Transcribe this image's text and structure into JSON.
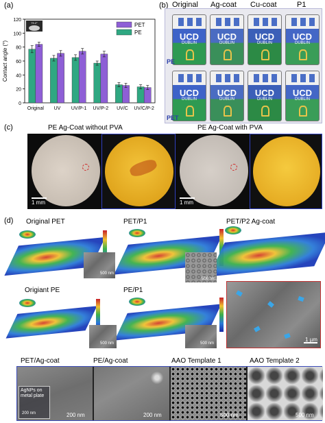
{
  "panel_labels": {
    "a": "(a)",
    "b": "(b)",
    "c": "(c)",
    "d": "(d)"
  },
  "chart_data": {
    "type": "bar",
    "categories": [
      "Original",
      "UV",
      "UV/P-1",
      "UV/P-2",
      "UV/C",
      "UV/C/P-2"
    ],
    "series": [
      {
        "name": "PE",
        "values": [
          77,
          64,
          65,
          57,
          26,
          23
        ],
        "errors": [
          5,
          4,
          4,
          3,
          3,
          3
        ],
        "color": "#2fa882"
      },
      {
        "name": "PET",
        "values": [
          84,
          71,
          74,
          70,
          25,
          22
        ],
        "errors": [
          3,
          4,
          4,
          4,
          3,
          3
        ],
        "color": "#8e5fd6"
      }
    ],
    "ylabel": "Contact angle (°)",
    "ylim": [
      0,
      120
    ],
    "yticks": [
      0,
      20,
      40,
      60,
      80,
      100,
      120
    ],
    "legend_position": "top-right",
    "inset_text": "79.2°"
  },
  "panel_b": {
    "columns": [
      "Original",
      "Ag-coat",
      "Cu-coat",
      "P1"
    ],
    "rows": [
      "PE",
      "PET"
    ],
    "logo_text": "UCD",
    "logo_subtext": "DUBLIN"
  },
  "panel_c": {
    "title_left": "PE Ag-Coat without PVA",
    "title_right": "PE Ag-Coat with PVA",
    "scale_left": "1 mm",
    "scale_right": "1 mm"
  },
  "panel_d": {
    "original_pet": "Original PET",
    "pet_p1": "PET/P1",
    "pet_p2_agcoat": "PET/P2 Ag-coat",
    "original_pe": "Origiant PE",
    "pe_p1": "PE/P1",
    "scale_500": "500 nm",
    "scale_1um": "1 µm"
  },
  "bottom_row": {
    "labels": [
      "PET/Ag-coat",
      "PE/Ag-coat",
      "AAO Template 1",
      "AAO Template 2"
    ],
    "inset_note": "AgNPs on metal plate",
    "inset_scale": "200 nm",
    "scales": [
      "200 nm",
      "200 nm",
      "500 nm",
      "500 nm"
    ]
  }
}
